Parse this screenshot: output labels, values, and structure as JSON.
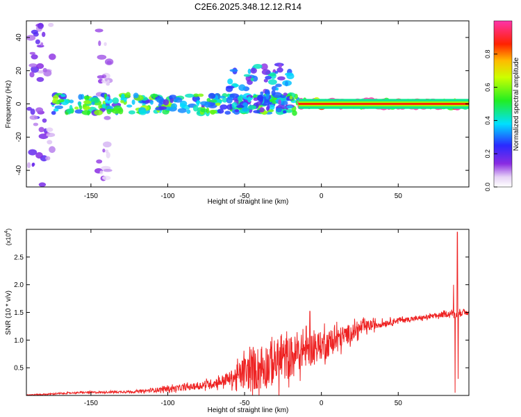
{
  "title": "C2E6.2025.348.12.12.R14",
  "chart_data": [
    {
      "type": "heatmap",
      "xlabel": "Height of straight line (km)",
      "ylabel": "Frequency (Hz)",
      "xlim": [
        -192,
        96
      ],
      "ylim": [
        -50,
        50
      ],
      "xticks": [
        -150,
        -100,
        -50,
        0,
        50
      ],
      "yticks": [
        -40,
        -20,
        0,
        20,
        40
      ],
      "colorbar": {
        "label": "Normalized spectral amplitude",
        "range": [
          0,
          1
        ],
        "ticks": [
          0.0,
          0.2,
          0.4,
          0.6,
          0.8
        ],
        "tick_labels": [
          "0.0",
          "0.2",
          "0.4",
          "0.6",
          "0.8"
        ],
        "colormap": "rainbow (white-violet-blue-cyan-green-yellow-red-magenta)"
      },
      "features": [
        {
          "x_range": [
            -192,
            -175
          ],
          "y_range": [
            -50,
            50
          ],
          "amplitude": 0.12,
          "description": "scattered low-amplitude spots across all frequencies"
        },
        {
          "x_range": [
            -145,
            -138
          ],
          "y_range": [
            -50,
            45
          ],
          "amplitude": 0.08,
          "description": "faint vertical streak"
        },
        {
          "x_range": [
            -175,
            -15
          ],
          "y_range": [
            -8,
            8
          ],
          "amplitude": 0.35,
          "description": "main band near 0 Hz"
        },
        {
          "x_range": [
            -60,
            -20
          ],
          "y_range": [
            -10,
            30
          ],
          "amplitude": 0.25,
          "description": "broadened upward-rising components"
        },
        {
          "x_range": [
            -15,
            96
          ],
          "y_range": [
            -3,
            3
          ],
          "amplitude": 0.8,
          "description": "strong narrow band at 0 Hz"
        }
      ]
    },
    {
      "type": "line",
      "xlabel": "Height of straight line (km)",
      "ylabel": "SNR (10 * v/v)",
      "multiplier": "(x10",
      "multiplier_exp": "4",
      "multiplier_close": ")",
      "xlim": [
        -192,
        96
      ],
      "ylim": [
        0,
        3.0
      ],
      "xticks": [
        -150,
        -100,
        -50,
        0,
        50
      ],
      "yticks": [
        0.5,
        1.0,
        1.5,
        2.0,
        2.5
      ],
      "series_color": "#ee2222",
      "envelope": {
        "x": [
          -192,
          -180,
          -160,
          -140,
          -120,
          -100,
          -90,
          -80,
          -70,
          -60,
          -50,
          -40,
          -30,
          -20,
          -10,
          0,
          10,
          20,
          30,
          40,
          50,
          60,
          70,
          78,
          82,
          85,
          88,
          90,
          93,
          96
        ],
        "y": [
          0.01,
          0.02,
          0.05,
          0.06,
          0.07,
          0.12,
          0.14,
          0.17,
          0.22,
          0.3,
          0.4,
          0.5,
          0.6,
          0.7,
          0.82,
          0.9,
          1.0,
          1.15,
          1.25,
          1.3,
          1.36,
          1.38,
          1.42,
          1.45,
          1.47,
          1.48,
          1.45,
          1.5,
          1.48,
          1.5
        ]
      },
      "noise": {
        "x": [
          -192,
          -120,
          -100,
          -80,
          -60,
          -50,
          -40,
          -30,
          -20,
          -10,
          0,
          10,
          20,
          40,
          60,
          80,
          96
        ],
        "amplitude": [
          0.01,
          0.02,
          0.05,
          0.06,
          0.12,
          0.3,
          0.42,
          0.42,
          0.38,
          0.3,
          0.25,
          0.22,
          0.15,
          0.06,
          0.04,
          0.05,
          0.05
        ]
      },
      "spikes": [
        {
          "x": -7.5,
          "y": 1.52
        },
        {
          "x": -12,
          "y": 1.2
        },
        {
          "x": 2,
          "y": 1.3
        },
        {
          "x": 10,
          "y": 1.33
        },
        {
          "x": 86,
          "y": 2.0
        },
        {
          "x": 87,
          "y": 0.05
        },
        {
          "x": 88.5,
          "y": 2.95
        },
        {
          "x": 89,
          "y": 0.3
        }
      ]
    }
  ]
}
